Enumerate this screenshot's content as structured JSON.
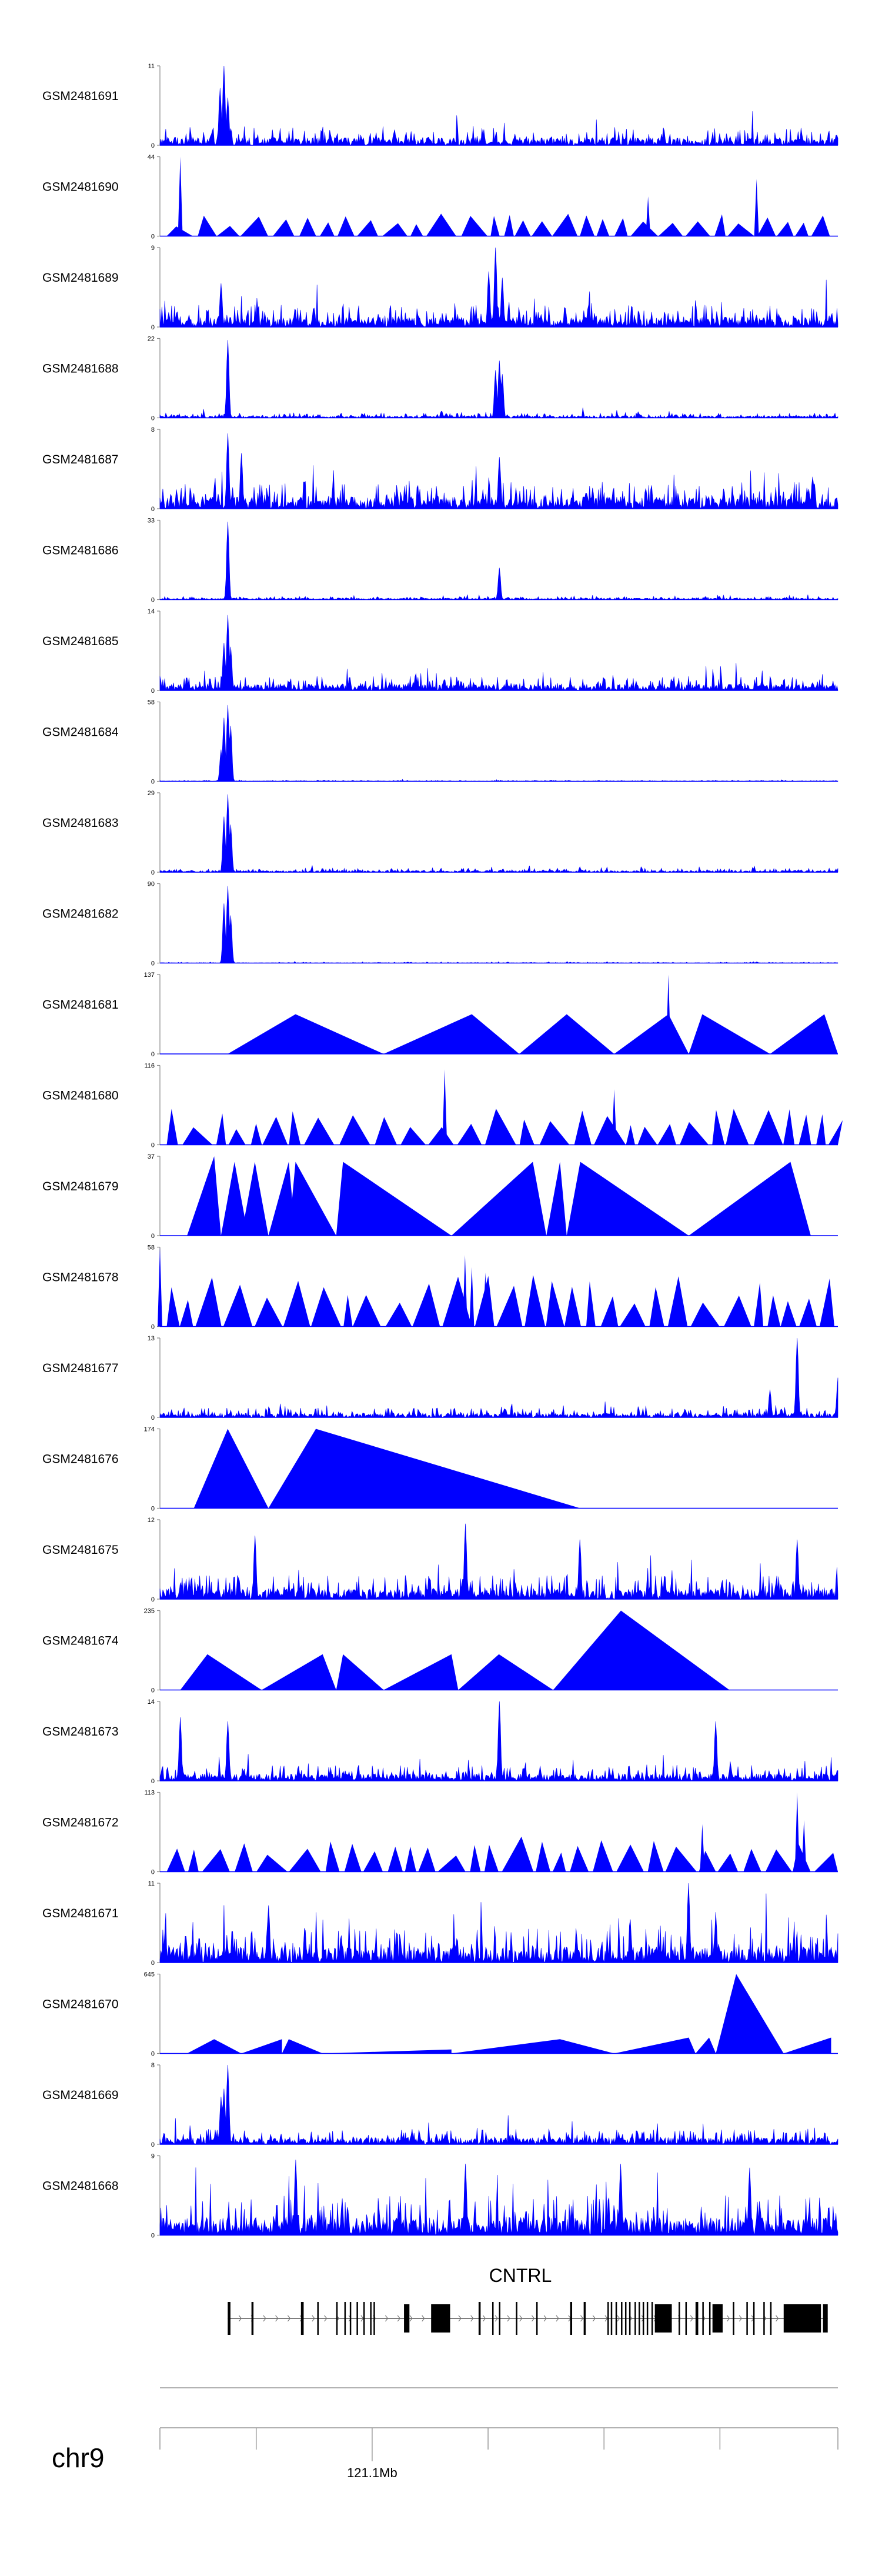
{
  "colors": {
    "signal": "#0000ff",
    "axis": "#888888",
    "gene": "#000000"
  },
  "chart_data": {
    "type": "area",
    "x_unit": "relative position across plotted window (0 = left edge, 1 = right edge)",
    "tracks": [
      {
        "name": "GSM2481691",
        "ymin": "0",
        "ymax": "11",
        "max": 11,
        "style": "dense",
        "noise": 0.22,
        "peaks": [
          [
            0.095,
            1.0
          ],
          [
            0.088,
            0.72
          ],
          [
            0.1,
            0.6
          ]
        ]
      },
      {
        "name": "GSM2481690",
        "ymin": "0",
        "ymax": "44",
        "max": 44,
        "style": "triangles",
        "tri_h": 0.22,
        "peaks": [
          [
            0.03,
            1.0
          ],
          [
            0.88,
            0.72
          ],
          [
            0.72,
            0.5
          ]
        ]
      },
      {
        "name": "GSM2481689",
        "ymin": "0",
        "ymax": "9",
        "max": 9,
        "style": "dense",
        "noise": 0.28,
        "peaks": [
          [
            0.495,
            1.0
          ],
          [
            0.485,
            0.7
          ],
          [
            0.505,
            0.62
          ],
          [
            0.09,
            0.55
          ]
        ]
      },
      {
        "name": "GSM2481688",
        "ymin": "0",
        "ymax": "22",
        "max": 22,
        "style": "dense",
        "noise": 0.06,
        "peaks": [
          [
            0.1,
            0.98
          ],
          [
            0.5,
            0.72
          ],
          [
            0.495,
            0.6
          ],
          [
            0.505,
            0.55
          ]
        ]
      },
      {
        "name": "GSM2481687",
        "ymin": "0",
        "ymax": "8",
        "max": 8,
        "style": "dense",
        "noise": 0.34,
        "peaks": [
          [
            0.1,
            0.95
          ],
          [
            0.12,
            0.7
          ],
          [
            0.5,
            0.65
          ]
        ]
      },
      {
        "name": "GSM2481686",
        "ymin": "0",
        "ymax": "33",
        "max": 33,
        "style": "dense",
        "noise": 0.04,
        "peaks": [
          [
            0.1,
            0.98
          ],
          [
            0.5,
            0.4
          ]
        ]
      },
      {
        "name": "GSM2481685",
        "ymin": "0",
        "ymax": "14",
        "max": 14,
        "style": "dense",
        "noise": 0.18,
        "peaks": [
          [
            0.1,
            0.95
          ],
          [
            0.095,
            0.6
          ],
          [
            0.105,
            0.55
          ]
        ]
      },
      {
        "name": "GSM2481684",
        "ymin": "0",
        "ymax": "58",
        "max": 58,
        "style": "dense",
        "noise": 0.015,
        "peaks": [
          [
            0.1,
            0.96
          ],
          [
            0.095,
            0.8
          ],
          [
            0.105,
            0.7
          ],
          [
            0.09,
            0.4
          ]
        ]
      },
      {
        "name": "GSM2481683",
        "ymin": "0",
        "ymax": "29",
        "max": 29,
        "style": "dense",
        "noise": 0.05,
        "peaks": [
          [
            0.1,
            0.98
          ],
          [
            0.095,
            0.7
          ],
          [
            0.105,
            0.6
          ]
        ]
      },
      {
        "name": "GSM2481682",
        "ymin": "0",
        "ymax": "90",
        "max": 90,
        "style": "dense",
        "noise": 0.012,
        "peaks": [
          [
            0.1,
            0.97
          ],
          [
            0.095,
            0.75
          ],
          [
            0.105,
            0.6
          ]
        ]
      },
      {
        "name": "GSM2481681",
        "ymin": "0",
        "ymax": "137",
        "max": 137,
        "style": "triangles",
        "tris": [
          [
            0.1,
            0.2,
            0.33,
            0.5
          ],
          [
            0.33,
            0.46,
            0.53,
            0.5
          ],
          [
            0.53,
            0.6,
            0.67,
            0.5
          ],
          [
            0.67,
            0.75,
            0.78,
            0.5
          ],
          [
            0.78,
            0.8,
            0.9,
            0.5
          ],
          [
            0.9,
            0.98,
            1.0,
            0.5
          ]
        ],
        "peaks": [
          [
            0.75,
            1.0
          ]
        ]
      },
      {
        "name": "GSM2481680",
        "ymin": "0",
        "ymax": "116",
        "max": 116,
        "style": "triangles",
        "tri_h": 0.35,
        "peaks": [
          [
            0.42,
            0.95
          ],
          [
            0.67,
            0.7
          ]
        ]
      },
      {
        "name": "GSM2481679",
        "ymin": "0",
        "ymax": "37",
        "max": 37,
        "style": "triangles",
        "tris": [
          [
            0.04,
            0.08,
            0.09,
            1.0
          ],
          [
            0.09,
            0.11,
            0.13,
            0.93
          ],
          [
            0.12,
            0.14,
            0.16,
            0.93
          ],
          [
            0.16,
            0.19,
            0.2,
            0.93
          ],
          [
            0.19,
            0.2,
            0.26,
            0.93
          ],
          [
            0.26,
            0.27,
            0.43,
            0.93
          ],
          [
            0.43,
            0.55,
            0.57,
            0.93
          ],
          [
            0.57,
            0.59,
            0.6,
            0.93
          ],
          [
            0.6,
            0.62,
            0.78,
            0.93
          ],
          [
            0.78,
            0.93,
            0.96,
            0.93
          ]
        ]
      },
      {
        "name": "GSM2481678",
        "ymin": "0",
        "ymax": "58",
        "max": 58,
        "style": "triangles",
        "tri_h": 0.5,
        "peaks": [
          [
            0.0,
            1.0
          ],
          [
            0.45,
            0.9
          ],
          [
            0.46,
            0.75
          ],
          [
            0.48,
            0.68
          ]
        ]
      },
      {
        "name": "GSM2481677",
        "ymin": "0",
        "ymax": "13",
        "max": 13,
        "style": "dense",
        "noise": 0.12,
        "peaks": [
          [
            0.94,
            1.0
          ],
          [
            1.0,
            0.5
          ],
          [
            0.9,
            0.35
          ]
        ]
      },
      {
        "name": "GSM2481676",
        "ymin": "0",
        "ymax": "174",
        "max": 174,
        "style": "triangles",
        "tris": [
          [
            0.05,
            0.1,
            0.16,
            1.0
          ],
          [
            0.16,
            0.23,
            0.62,
            1.0
          ]
        ]
      },
      {
        "name": "GSM2481675",
        "ymin": "0",
        "ymax": "12",
        "max": 12,
        "style": "dense",
        "noise": 0.3,
        "peaks": [
          [
            0.45,
            0.95
          ],
          [
            0.14,
            0.8
          ],
          [
            0.62,
            0.75
          ],
          [
            0.94,
            0.75
          ]
        ]
      },
      {
        "name": "GSM2481674",
        "ymin": "0",
        "ymax": "235",
        "max": 235,
        "style": "triangles",
        "tris": [
          [
            0.03,
            0.07,
            0.15,
            0.45
          ],
          [
            0.15,
            0.24,
            0.26,
            0.45
          ],
          [
            0.26,
            0.27,
            0.33,
            0.45
          ],
          [
            0.33,
            0.43,
            0.44,
            0.45
          ],
          [
            0.44,
            0.5,
            0.58,
            0.45
          ],
          [
            0.58,
            0.68,
            0.84,
            1.0
          ]
        ]
      },
      {
        "name": "GSM2481673",
        "ymin": "0",
        "ymax": "14",
        "max": 14,
        "style": "dense",
        "noise": 0.2,
        "peaks": [
          [
            0.5,
            1.0
          ],
          [
            0.1,
            0.75
          ],
          [
            0.03,
            0.8
          ],
          [
            0.82,
            0.75
          ]
        ]
      },
      {
        "name": "GSM2481672",
        "ymin": "0",
        "ymax": "113",
        "max": 113,
        "style": "triangles",
        "tri_h": 0.35,
        "peaks": [
          [
            0.94,
            1.0
          ],
          [
            0.95,
            0.65
          ],
          [
            0.8,
            0.6
          ]
        ]
      },
      {
        "name": "GSM2481671",
        "ymin": "0",
        "ymax": "11",
        "max": 11,
        "style": "dense",
        "noise": 0.45,
        "peaks": [
          [
            0.78,
            1.0
          ],
          [
            0.16,
            0.72
          ]
        ]
      },
      {
        "name": "GSM2481670",
        "ymin": "0",
        "ymax": "645",
        "max": 645,
        "style": "triangles",
        "tris": [
          [
            0.04,
            0.08,
            0.12,
            0.18
          ],
          [
            0.12,
            0.18,
            0.18,
            0.18
          ],
          [
            0.18,
            0.19,
            0.24,
            0.18
          ],
          [
            0.24,
            0.43,
            0.43,
            0.05
          ],
          [
            0.43,
            0.59,
            0.67,
            0.18
          ],
          [
            0.67,
            0.78,
            0.79,
            0.2
          ],
          [
            0.79,
            0.81,
            0.82,
            0.2
          ],
          [
            0.82,
            0.85,
            0.92,
            1.0
          ],
          [
            0.92,
            0.99,
            0.99,
            0.2
          ]
        ]
      },
      {
        "name": "GSM2481669",
        "ymin": "0",
        "ymax": "8",
        "max": 8,
        "style": "dense",
        "noise": 0.2,
        "peaks": [
          [
            0.1,
            1.0
          ],
          [
            0.095,
            0.7
          ],
          [
            0.09,
            0.6
          ]
        ]
      },
      {
        "name": "GSM2481668",
        "ymin": "0",
        "ymax": "9",
        "max": 9,
        "style": "dense",
        "noise": 0.5,
        "peaks": [
          [
            0.2,
            0.95
          ],
          [
            0.45,
            0.9
          ],
          [
            0.68,
            0.9
          ],
          [
            0.87,
            0.85
          ]
        ]
      }
    ],
    "gene": {
      "name": "CNTRL",
      "strand": "+",
      "start": 0.1,
      "end": 0.985,
      "exons": [
        [
          0.1,
          0.104
        ],
        [
          0.135,
          0.138
        ],
        [
          0.208,
          0.212
        ],
        [
          0.232,
          0.234
        ],
        [
          0.26,
          0.262
        ],
        [
          0.272,
          0.274
        ],
        [
          0.28,
          0.282
        ],
        [
          0.29,
          0.292
        ],
        [
          0.3,
          0.302
        ],
        [
          0.31,
          0.312
        ],
        [
          0.315,
          0.317
        ],
        [
          0.36,
          0.368
        ],
        [
          0.4,
          0.428
        ],
        [
          0.47,
          0.473
        ],
        [
          0.49,
          0.492
        ],
        [
          0.5,
          0.502
        ],
        [
          0.525,
          0.527
        ],
        [
          0.555,
          0.557
        ],
        [
          0.605,
          0.608
        ],
        [
          0.625,
          0.628
        ],
        [
          0.66,
          0.662
        ],
        [
          0.665,
          0.667
        ],
        [
          0.672,
          0.674
        ],
        [
          0.68,
          0.682
        ],
        [
          0.686,
          0.688
        ],
        [
          0.692,
          0.694
        ],
        [
          0.7,
          0.702
        ],
        [
          0.706,
          0.708
        ],
        [
          0.712,
          0.714
        ],
        [
          0.718,
          0.72
        ],
        [
          0.725,
          0.727
        ],
        [
          0.73,
          0.755
        ],
        [
          0.765,
          0.767
        ],
        [
          0.775,
          0.777
        ],
        [
          0.79,
          0.794
        ],
        [
          0.8,
          0.802
        ],
        [
          0.81,
          0.812
        ],
        [
          0.815,
          0.83
        ],
        [
          0.845,
          0.847
        ],
        [
          0.865,
          0.867
        ],
        [
          0.875,
          0.877
        ],
        [
          0.89,
          0.892
        ],
        [
          0.9,
          0.902
        ],
        [
          0.92,
          0.975
        ],
        [
          0.978,
          0.985
        ]
      ]
    },
    "axis": {
      "chromosome": "chr9",
      "tick_positions": [
        0.0,
        0.142,
        0.313,
        0.484,
        0.655,
        0.826,
        1.0
      ],
      "labelled_tick": {
        "position": 0.313,
        "label": "121.1Mb"
      }
    }
  }
}
